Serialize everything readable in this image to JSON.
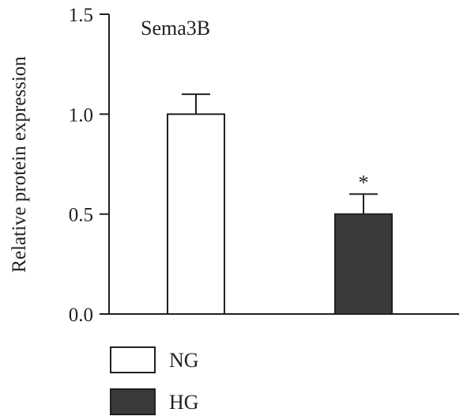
{
  "chart_data": {
    "type": "bar",
    "title": "Sema3B",
    "xlabel": "",
    "ylabel": "Relative protein expression",
    "ylim": [
      0,
      1.5
    ],
    "yticks": [
      "0.0",
      "0.5",
      "1.0",
      "1.5"
    ],
    "categories": [
      "NG",
      "HG"
    ],
    "values": [
      1.0,
      0.5
    ],
    "errors": [
      0.1,
      0.1
    ],
    "annotations": [
      "",
      "*"
    ],
    "bar_colors": [
      "#ffffff",
      "#3a3a3a"
    ],
    "legend": [
      {
        "label": "NG",
        "color": "#ffffff"
      },
      {
        "label": "HG",
        "color": "#3a3a3a"
      }
    ],
    "legend_position": "bottom-left",
    "grid": false
  }
}
